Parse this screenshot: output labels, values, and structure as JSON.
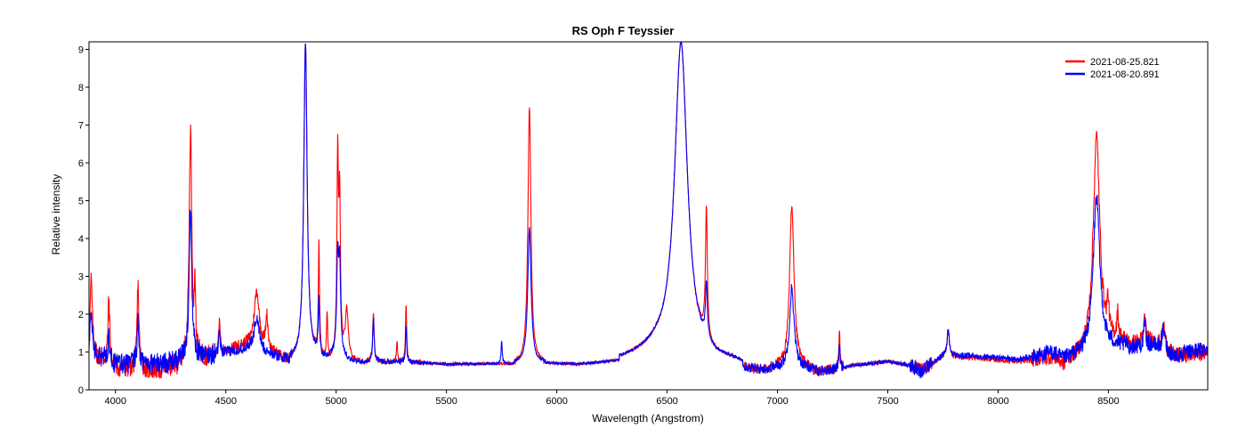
{
  "chart_data": {
    "type": "line",
    "title": "RS Oph   F Teyssier",
    "xlabel": "Wavelength (Angstrom)",
    "ylabel": "Relative intensity",
    "xlim": [
      3880,
      8950
    ],
    "ylim": [
      0,
      9.2
    ],
    "xticks": [
      4000,
      4500,
      5000,
      5500,
      6000,
      6500,
      7000,
      7500,
      8000,
      8500
    ],
    "yticks": [
      0,
      1,
      2,
      3,
      4,
      5,
      6,
      7,
      8,
      9
    ],
    "grid": false,
    "legend_position": "top-right",
    "series": [
      {
        "name": "2021-08-25.821",
        "color": "#ff0000",
        "baseline": [
          [
            3880,
            1.0
          ],
          [
            4000,
            0.6
          ],
          [
            4200,
            0.55
          ],
          [
            4400,
            0.9
          ],
          [
            4600,
            1.2
          ],
          [
            4800,
            0.8
          ],
          [
            4900,
            0.9
          ],
          [
            5000,
            0.9
          ],
          [
            5100,
            0.75
          ],
          [
            5300,
            0.75
          ],
          [
            5500,
            0.68
          ],
          [
            5800,
            0.7
          ],
          [
            5950,
            0.72
          ],
          [
            6100,
            0.68
          ],
          [
            6300,
            0.8
          ],
          [
            6450,
            1.0
          ],
          [
            6600,
            0.78
          ],
          [
            6800,
            0.72
          ],
          [
            6900,
            0.55
          ],
          [
            7100,
            0.6
          ],
          [
            7200,
            0.5
          ],
          [
            7350,
            0.65
          ],
          [
            7500,
            0.75
          ],
          [
            7600,
            0.65
          ],
          [
            7650,
            0.5
          ],
          [
            7750,
            0.9
          ],
          [
            7900,
            0.85
          ],
          [
            8100,
            0.75
          ],
          [
            8250,
            0.9
          ],
          [
            8300,
            0.7
          ],
          [
            8500,
            1.2
          ],
          [
            8700,
            1.3
          ],
          [
            8800,
            0.9
          ],
          [
            8950,
            1.0
          ]
        ],
        "peaks": [
          [
            3890,
            2.9,
            6
          ],
          [
            3970,
            2.4,
            5
          ],
          [
            4102,
            2.8,
            5
          ],
          [
            4340,
            6.9,
            7
          ],
          [
            4360,
            2.7,
            3
          ],
          [
            4471,
            1.8,
            4
          ],
          [
            4640,
            2.6,
            14
          ],
          [
            4686,
            1.9,
            6
          ],
          [
            4861,
            9.2,
            9
          ],
          [
            4922,
            3.8,
            3
          ],
          [
            4959,
            2.1,
            3
          ],
          [
            5007,
            6.1,
            4
          ],
          [
            5016,
            4.9,
            4
          ],
          [
            5048,
            2.2,
            8
          ],
          [
            5169,
            2.0,
            4
          ],
          [
            5276,
            1.3,
            3
          ],
          [
            5317,
            2.3,
            3
          ],
          [
            5876,
            7.5,
            8
          ],
          [
            6563,
            9.2,
            35
          ],
          [
            6678,
            4.2,
            5
          ],
          [
            7065,
            4.8,
            12
          ],
          [
            7281,
            1.6,
            3
          ],
          [
            7774,
            1.6,
            6
          ],
          [
            8446,
            6.7,
            18
          ],
          [
            8498,
            2.0,
            5
          ],
          [
            8542,
            1.9,
            5
          ],
          [
            8665,
            2.0,
            5
          ],
          [
            8750,
            1.7,
            8
          ]
        ]
      },
      {
        "name": "2021-08-20.891",
        "color": "#0000ff",
        "baseline": [
          [
            3880,
            1.0
          ],
          [
            4000,
            0.7
          ],
          [
            4200,
            0.7
          ],
          [
            4400,
            0.9
          ],
          [
            4600,
            1.1
          ],
          [
            4800,
            0.8
          ],
          [
            4900,
            0.9
          ],
          [
            5000,
            0.95
          ],
          [
            5100,
            0.75
          ],
          [
            5300,
            0.75
          ],
          [
            5500,
            0.68
          ],
          [
            5800,
            0.7
          ],
          [
            5950,
            0.72
          ],
          [
            6100,
            0.68
          ],
          [
            6300,
            0.8
          ],
          [
            6450,
            1.0
          ],
          [
            6600,
            0.78
          ],
          [
            6800,
            0.72
          ],
          [
            6900,
            0.55
          ],
          [
            7100,
            0.6
          ],
          [
            7200,
            0.5
          ],
          [
            7350,
            0.65
          ],
          [
            7500,
            0.75
          ],
          [
            7600,
            0.65
          ],
          [
            7650,
            0.5
          ],
          [
            7750,
            0.9
          ],
          [
            7900,
            0.9
          ],
          [
            8100,
            0.8
          ],
          [
            8250,
            1.0
          ],
          [
            8300,
            0.8
          ],
          [
            8500,
            1.1
          ],
          [
            8700,
            1.2
          ],
          [
            8800,
            0.9
          ],
          [
            8950,
            1.1
          ]
        ],
        "peaks": [
          [
            3890,
            2.0,
            6
          ],
          [
            3970,
            1.4,
            5
          ],
          [
            4102,
            1.8,
            5
          ],
          [
            4340,
            4.9,
            7
          ],
          [
            4471,
            1.5,
            4
          ],
          [
            4640,
            1.9,
            14
          ],
          [
            4861,
            9.2,
            9
          ],
          [
            4922,
            2.4,
            3
          ],
          [
            5007,
            3.4,
            5
          ],
          [
            5016,
            3.2,
            5
          ],
          [
            5169,
            1.9,
            4
          ],
          [
            5317,
            1.7,
            3
          ],
          [
            5750,
            1.3,
            3
          ],
          [
            5876,
            4.3,
            9
          ],
          [
            6563,
            9.2,
            35
          ],
          [
            6678,
            2.2,
            5
          ],
          [
            7065,
            2.7,
            12
          ],
          [
            7281,
            1.2,
            3
          ],
          [
            7774,
            1.6,
            6
          ],
          [
            8446,
            5.1,
            18
          ],
          [
            8665,
            1.8,
            5
          ],
          [
            8750,
            1.6,
            8
          ]
        ]
      }
    ]
  }
}
